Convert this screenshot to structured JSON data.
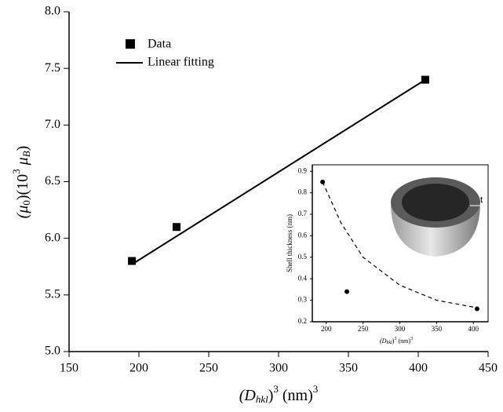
{
  "chart_data": [
    {
      "type": "scatter",
      "xlim": [
        150,
        450
      ],
      "xticks": [
        150,
        200,
        250,
        300,
        350,
        400,
        450
      ],
      "ylim": [
        5,
        8
      ],
      "yticks": [
        {
          "value": 5,
          "label": "5.0"
        },
        {
          "value": 5.5,
          "label": "5.5"
        },
        {
          "value": 6,
          "label": "6.0"
        },
        {
          "value": 6.5,
          "label": "6.5"
        },
        {
          "value": 7,
          "label": "7.0"
        },
        {
          "value": 7.5,
          "label": "7.5"
        },
        {
          "value": 8,
          "label": "8.0"
        }
      ],
      "xlabel": [
        "(D",
        "hkl",
        ")",
        "3",
        " (nm)",
        "3"
      ],
      "ylabel": [
        "(μ",
        "0",
        ")(10",
        "3",
        " μ",
        "B",
        ")"
      ],
      "series": [
        {
          "name": "Data",
          "mode": "markers",
          "marker": "square",
          "color": "#000000",
          "x": [
            195,
            227,
            405
          ],
          "values": [
            5.8,
            6.1,
            7.4
          ]
        },
        {
          "name": "Linear fitting",
          "mode": "line",
          "color": "#000000",
          "x": [
            195,
            405
          ],
          "values": [
            5.77,
            7.4
          ]
        }
      ]
    },
    {
      "type": "scatter",
      "xlim": [
        181,
        420
      ],
      "xticks": [
        200,
        250,
        300,
        350,
        400
      ],
      "ylim": [
        0.2,
        0.93
      ],
      "yticks": [
        0.2,
        0.3,
        0.4,
        0.5,
        0.6,
        0.7,
        0.8,
        0.9
      ],
      "xlabel": [
        "(D",
        "hkl",
        ")",
        "3",
        " (nm)",
        "3"
      ],
      "ylabel": "Shell thickness (nm)",
      "annotation": "t",
      "series": [
        {
          "mode": "markers",
          "marker": "circle",
          "color": "#000000",
          "x": [
            195,
            228,
            405
          ],
          "values": [
            0.85,
            0.34,
            0.26
          ]
        },
        {
          "mode": "line",
          "dash": true,
          "color": "#000000",
          "x": [
            195,
            220,
            250,
            300,
            350,
            405
          ],
          "values": [
            0.85,
            0.66,
            0.5,
            0.37,
            0.3,
            0.265
          ]
        }
      ]
    }
  ]
}
